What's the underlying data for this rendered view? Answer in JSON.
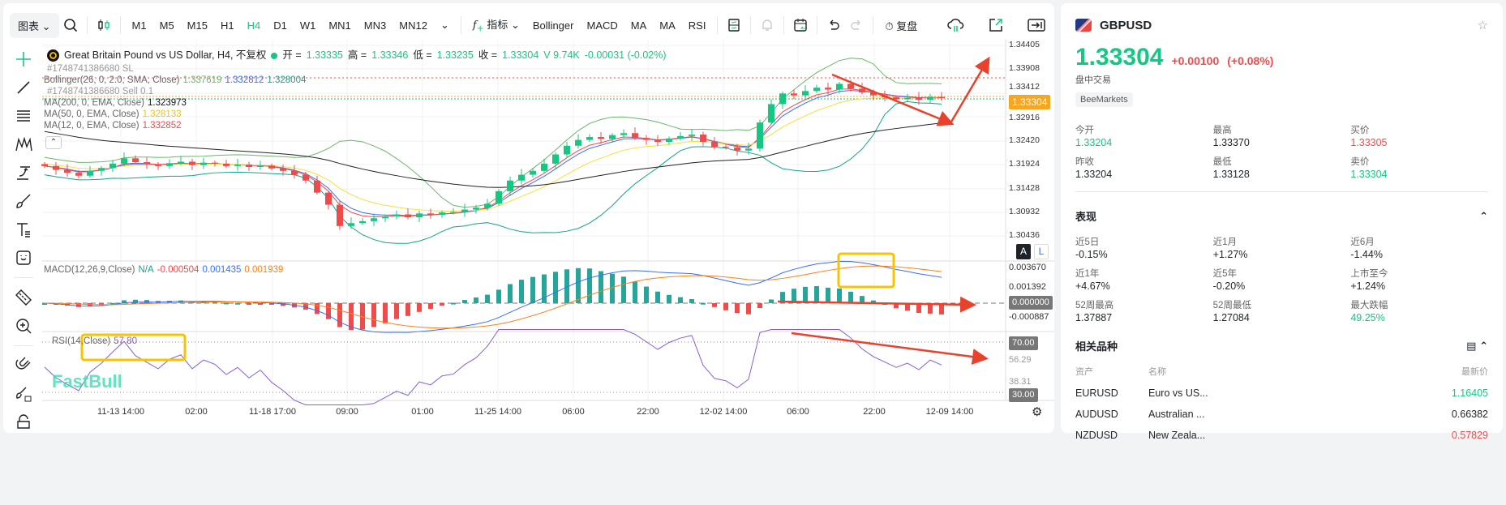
{
  "toolbar": {
    "chart_menu": "图表",
    "timeframes": [
      "M1",
      "M5",
      "M15",
      "H1",
      "H4",
      "D1",
      "W1",
      "MN1",
      "MN3",
      "MN12"
    ],
    "active_timeframe": "H4",
    "indicators_label": "指标",
    "indicator_shortcuts": [
      "Bollinger",
      "MACD",
      "MA",
      "MA",
      "RSI"
    ],
    "replay_label": "复盘"
  },
  "legend": {
    "title": "Great Britain Pound vs US Dollar, H4, 不复权",
    "open_label": "开 =",
    "open": "1.33335",
    "high_label": "高 =",
    "high": "1.33346",
    "low_label": "低 =",
    "low": "1.33235",
    "close_label": "收 =",
    "close": "1.33304",
    "volume": "V 9.74K",
    "change": "-0.00031 (-0.02%)",
    "order_sl": "#1748741386680 SL",
    "order_sell": "#1748741386680 Sell 0.1",
    "bollinger": {
      "label": "Bollinger(26, 0, 2.0, SMA, Close)",
      "upper": "1.337619",
      "middle": "1.332812",
      "lower": "1.328004"
    },
    "ma200": {
      "label": "MA(200, 0, EMA, Close)",
      "value": "1.323973"
    },
    "ma50": {
      "label": "MA(50, 0, EMA, Close)",
      "value": "1.328133"
    },
    "ma12": {
      "label": "MA(12, 0, EMA, Close)",
      "value": "1.332852"
    },
    "macd": {
      "label": "MACD(12,26,9,Close)",
      "na": "N/A",
      "hist": "-0.000504",
      "macd": "0.001435",
      "signal": "0.001939"
    },
    "rsi": {
      "label": "RSI(14,Close)",
      "value": "57.80"
    }
  },
  "price_axis": [
    "1.34405",
    "1.33908",
    "1.33412",
    "1.32916",
    "1.32420",
    "1.31924",
    "1.31428",
    "1.30932",
    "1.30436"
  ],
  "current_price_tag": "1.33304",
  "macd_axis": [
    "0.003670",
    "0.001392",
    "0.000000",
    "-0.000887"
  ],
  "rsi_axis": [
    "70.00",
    "56.29",
    "38.31",
    "30.00"
  ],
  "time_axis": [
    "11-13 14:00",
    "02:00",
    "11-18 17:00",
    "09:00",
    "01:00",
    "11-25 14:00",
    "06:00",
    "22:00",
    "12-02 14:00",
    "06:00",
    "22:00",
    "12-09 14:00"
  ],
  "scale_buttons": [
    "A",
    "L"
  ],
  "watermark": "FastBull",
  "colors": {
    "up": "#16c784",
    "down": "#f04b4b",
    "bb_upper": "#6db56d",
    "bb_mid": "#3b6ef5",
    "bb_lower": "#14a38b",
    "ma12": "#f04b4b",
    "ma50": "#f5e03c",
    "ma200": "#222222",
    "annot": "#e8412c",
    "highlight": "#f8c400",
    "price_tag": "#f5a623"
  },
  "chart_data": {
    "type": "candlestick",
    "closes": [
      1.319,
      1.3182,
      1.3176,
      1.317,
      1.318,
      1.3186,
      1.3195,
      1.3206,
      1.3198,
      1.3194,
      1.319,
      1.3196,
      1.3199,
      1.3192,
      1.3197,
      1.3195,
      1.319,
      1.3193,
      1.3188,
      1.3191,
      1.3185,
      1.318,
      1.3172,
      1.316,
      1.3135,
      1.311,
      1.3066,
      1.3072,
      1.3076,
      1.3082,
      1.3086,
      1.309,
      1.3084,
      1.3092,
      1.3089,
      1.3094,
      1.3095,
      1.31,
      1.3104,
      1.3112,
      1.3138,
      1.316,
      1.3172,
      1.318,
      1.3195,
      1.3214,
      1.3232,
      1.3244,
      1.325,
      1.3246,
      1.3254,
      1.3258,
      1.3248,
      1.3244,
      1.324,
      1.3247,
      1.3252,
      1.3255,
      1.324,
      1.323,
      1.3228,
      1.3222,
      1.3226,
      1.328,
      1.3318,
      1.334,
      1.3336,
      1.3345,
      1.3352,
      1.3348,
      1.336,
      1.335,
      1.3342,
      1.3336,
      1.3332,
      1.3328,
      1.3331,
      1.3327,
      1.3333,
      1.33304
    ],
    "ylim": [
      1.303,
      1.3445
    ]
  },
  "side": {
    "symbol": "GBPUSD",
    "price": "1.33304",
    "change": "+0.00100",
    "change_pct": "(+0.08%)",
    "session": "盘中交易",
    "broker": "BeeMarkets",
    "quote": [
      {
        "label": "今开",
        "value": "1.33204",
        "color": "g"
      },
      {
        "label": "最高",
        "value": "1.33370",
        "color": ""
      },
      {
        "label": "买价",
        "value": "1.33305",
        "color": "r"
      },
      {
        "label": "昨收",
        "value": "1.33204",
        "color": ""
      },
      {
        "label": "最低",
        "value": "1.33128",
        "color": ""
      },
      {
        "label": "卖价",
        "value": "1.33304",
        "color": "g"
      }
    ],
    "perf_title": "表现",
    "perf": [
      {
        "label": "近5日",
        "value": "-0.15%"
      },
      {
        "label": "近1月",
        "value": "+1.27%"
      },
      {
        "label": "近6月",
        "value": "-1.44%"
      },
      {
        "label": "近1年",
        "value": "+4.67%"
      },
      {
        "label": "近5年",
        "value": "-0.20%"
      },
      {
        "label": "上市至今",
        "value": "+1.24%"
      },
      {
        "label": "52周最高",
        "value": "1.37887"
      },
      {
        "label": "52周最低",
        "value": "1.27084"
      },
      {
        "label": "最大跌幅",
        "value": "49.25%"
      }
    ],
    "related_title": "相关品种",
    "related_headers": [
      "资产",
      "名称",
      "最新价"
    ],
    "related": [
      {
        "symbol": "EURUSD",
        "name": "Euro vs US...",
        "price": "1.16405",
        "color": "g"
      },
      {
        "symbol": "AUDUSD",
        "name": "Australian ...",
        "price": "0.66382",
        "color": ""
      },
      {
        "symbol": "NZDUSD",
        "name": "New Zeala...",
        "price": "0.57829",
        "color": "r"
      }
    ]
  }
}
